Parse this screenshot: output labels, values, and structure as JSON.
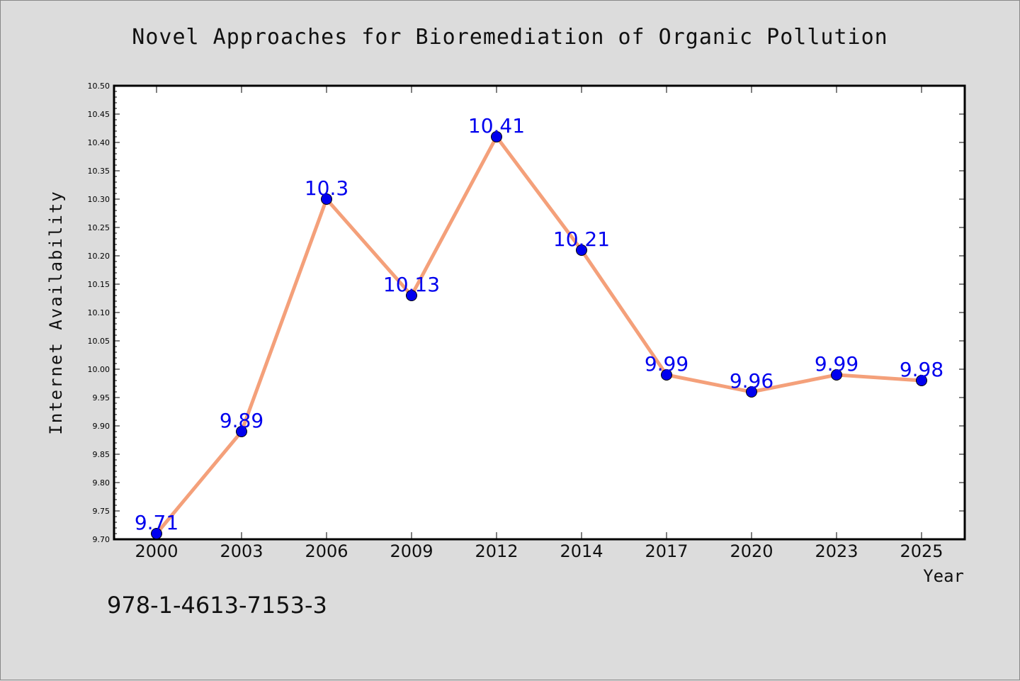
{
  "chart_data": {
    "type": "line",
    "title": "Novel Approaches for Bioremediation of Organic Pollution",
    "xlabel": "Year",
    "ylabel": "Internet Availability",
    "categories": [
      "2000",
      "2003",
      "2006",
      "2009",
      "2012",
      "2014",
      "2017",
      "2020",
      "2023",
      "2025"
    ],
    "series": [
      {
        "values": [
          9.71,
          9.89,
          10.3,
          10.13,
          10.41,
          10.21,
          9.99,
          9.96,
          9.99,
          9.98
        ],
        "data_labels": [
          "9.71",
          "9.89",
          "10.3",
          "10.13",
          "10.41",
          "10.21",
          "9.99",
          "9.96",
          "9.99",
          "9.98"
        ],
        "line_color": "#f4a07a",
        "marker_color": "#0000ee"
      }
    ],
    "ylim": [
      9.7,
      10.5
    ],
    "yticks": [
      "9.70",
      "9.75",
      "9.80",
      "9.85",
      "9.90",
      "9.95",
      "10.00",
      "10.05",
      "10.10",
      "10.15",
      "10.20",
      "10.25",
      "10.30",
      "10.35",
      "10.40",
      "10.45",
      "10.50"
    ],
    "grid": false,
    "legend": "none",
    "label_color": "#0000ee"
  },
  "footer": {
    "isbn": "978-1-4613-7153-3"
  },
  "colors": {
    "background": "#dcdcdc",
    "plot_area": "#ffffff",
    "axes": "#000000"
  }
}
